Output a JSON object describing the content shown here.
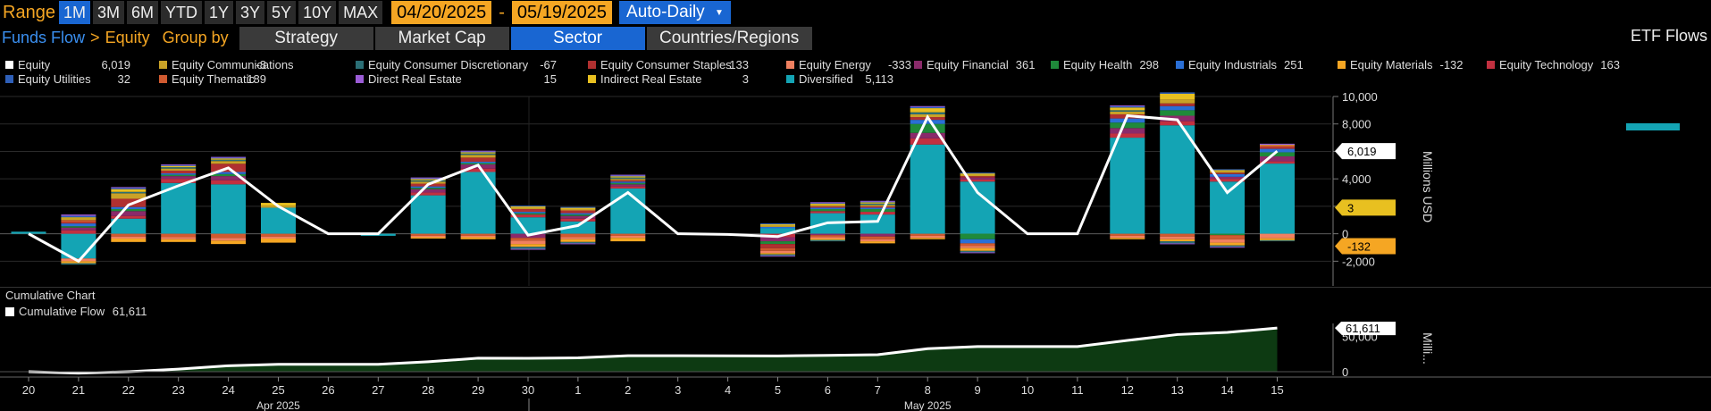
{
  "toolbar": {
    "range_label": "Range",
    "ranges": [
      "1M",
      "3M",
      "6M",
      "YTD",
      "1Y",
      "3Y",
      "5Y",
      "10Y",
      "MAX"
    ],
    "active_range": "1M",
    "start_date": "04/20/2025",
    "date_separator": "-",
    "end_date": "05/19/2025",
    "frequency": "Auto-Daily",
    "frequency_arrow": "▼"
  },
  "nav": {
    "crumb_root": "Funds Flow",
    "crumb_sep": ">",
    "crumb_leaf": "Equity",
    "group_by_label": "Group by",
    "group_tabs": [
      "Strategy",
      "Market Cap",
      "Sector",
      "Countries/Regions"
    ],
    "active_tab": "Sector",
    "panel_title": "ETF Flows"
  },
  "legend": [
    {
      "name": "Equity",
      "value": "6,019",
      "color": "#ffffff"
    },
    {
      "name": "Equity Communications",
      "value": "-8",
      "color": "#c9a227"
    },
    {
      "name": "Equity Consumer Discretionary",
      "value": "-67",
      "color": "#2b6f76"
    },
    {
      "name": "Equity Consumer Staples",
      "value": "133",
      "color": "#b03030"
    },
    {
      "name": "Equity Energy",
      "value": "-333",
      "color": "#f08060"
    },
    {
      "name": "Equity Financial",
      "value": "361",
      "color": "#8a2a6a"
    },
    {
      "name": "Equity Health",
      "value": "298",
      "color": "#1f8a3a"
    },
    {
      "name": "Equity Industrials",
      "value": "251",
      "color": "#2a6fd6"
    },
    {
      "name": "Equity Materials",
      "value": "-132",
      "color": "#f5a623"
    },
    {
      "name": "Equity Technology",
      "value": "163",
      "color": "#c23040"
    },
    {
      "name": "Equity Utilities",
      "value": "32",
      "color": "#2e5fb8"
    },
    {
      "name": "Equity Thematic",
      "value": "189",
      "color": "#d05a30"
    },
    {
      "name": "Direct Real Estate",
      "value": "15",
      "color": "#9b5cd6"
    },
    {
      "name": "Indirect Real Estate",
      "value": "3",
      "color": "#e8c020"
    },
    {
      "name": "Diversified",
      "value": "5,113",
      "color": "#14a4b4"
    }
  ],
  "chart_data": [
    {
      "type": "bar",
      "stacked": true,
      "ylabel": "Millions USD",
      "ylim": [
        -3800,
        10000
      ],
      "yticks": [
        10000,
        8000,
        6000,
        4000,
        2000,
        0,
        -2000
      ],
      "ytick_labels": [
        "10,000",
        "8,000",
        "6,000",
        "4,000",
        "2,000",
        "0",
        "-2,000"
      ],
      "categories": [
        "20",
        "21",
        "22",
        "23",
        "24",
        "25",
        "26",
        "27",
        "28",
        "29",
        "30",
        "1",
        "2",
        "3",
        "4",
        "5",
        "6",
        "7",
        "8",
        "9",
        "10",
        "11",
        "12",
        "13",
        "14",
        "15"
      ],
      "month_labels": [
        {
          "label": "Apr 2025",
          "at": "25"
        },
        {
          "label": "May 2025",
          "at": "8"
        }
      ],
      "series": [
        {
          "name": "Equity",
          "kind": "line",
          "color": "#ffffff",
          "values": [
            0,
            -2000,
            2100,
            3500,
            4800,
            2000,
            0,
            0,
            3600,
            5000,
            -100,
            600,
            3000,
            0,
            -50,
            -200,
            800,
            900,
            8500,
            3000,
            0,
            0,
            8600,
            8300,
            3000,
            6019
          ]
        },
        {
          "name": "Diversified",
          "color": "#14a4b4",
          "values": [
            150,
            -1800,
            1100,
            3700,
            3600,
            1900,
            0,
            -150,
            2800,
            4500,
            1200,
            900,
            3300,
            0,
            0,
            400,
            1500,
            1400,
            6500,
            3800,
            0,
            0,
            7000,
            7900,
            3800,
            5113
          ]
        },
        {
          "name": "Equity Technology",
          "color": "#c23040",
          "values": [
            0,
            250,
            200,
            300,
            300,
            0,
            0,
            0,
            200,
            250,
            200,
            200,
            150,
            0,
            0,
            -250,
            150,
            200,
            450,
            150,
            0,
            0,
            300,
            300,
            200,
            163
          ]
        },
        {
          "name": "Equity Financial",
          "color": "#8a2a6a",
          "values": [
            0,
            200,
            350,
            200,
            300,
            0,
            0,
            0,
            250,
            300,
            -300,
            200,
            150,
            0,
            0,
            -300,
            -100,
            -200,
            400,
            150,
            0,
            0,
            400,
            400,
            150,
            361
          ]
        },
        {
          "name": "Equity Health",
          "color": "#1f8a3a",
          "values": [
            0,
            100,
            150,
            100,
            150,
            0,
            0,
            0,
            100,
            100,
            100,
            100,
            100,
            0,
            0,
            -200,
            150,
            200,
            650,
            -400,
            0,
            0,
            400,
            400,
            -100,
            298
          ]
        },
        {
          "name": "Equity Industrials",
          "color": "#2a6fd6",
          "values": [
            0,
            200,
            150,
            100,
            150,
            0,
            0,
            0,
            100,
            100,
            100,
            100,
            100,
            0,
            0,
            100,
            100,
            100,
            300,
            -300,
            0,
            0,
            300,
            300,
            200,
            251
          ]
        },
        {
          "name": "Equity Consumer Staples",
          "color": "#b03030",
          "values": [
            0,
            100,
            600,
            200,
            600,
            0,
            0,
            0,
            200,
            300,
            200,
            200,
            100,
            0,
            0,
            -300,
            100,
            100,
            200,
            100,
            0,
            0,
            300,
            200,
            100,
            133
          ]
        },
        {
          "name": "Equity Thematic",
          "color": "#d05a30",
          "values": [
            0,
            150,
            -200,
            -250,
            -300,
            -200,
            0,
            0,
            -150,
            -150,
            -200,
            -250,
            -150,
            0,
            0,
            -200,
            -150,
            -200,
            -150,
            -200,
            0,
            0,
            -150,
            -200,
            -300,
            189
          ]
        },
        {
          "name": "Equity Energy",
          "color": "#f08060",
          "values": [
            0,
            -200,
            -150,
            -150,
            -200,
            -150,
            0,
            0,
            -100,
            -100,
            -250,
            -150,
            -150,
            0,
            0,
            -150,
            -100,
            -150,
            -150,
            -150,
            0,
            0,
            -150,
            -200,
            -250,
            -333
          ]
        },
        {
          "name": "Equity Materials",
          "color": "#f5a623",
          "values": [
            0,
            -150,
            -250,
            -200,
            -250,
            -300,
            0,
            0,
            -100,
            -150,
            -200,
            -200,
            -250,
            0,
            0,
            -100,
            -100,
            -150,
            -100,
            -200,
            0,
            0,
            -100,
            -150,
            -200,
            -132
          ]
        },
        {
          "name": "Equity Communications",
          "color": "#c9a227",
          "values": [
            0,
            100,
            400,
            150,
            200,
            150,
            0,
            0,
            150,
            200,
            100,
            100,
            100,
            0,
            0,
            100,
            100,
            100,
            200,
            100,
            0,
            0,
            200,
            300,
            100,
            -8
          ]
        },
        {
          "name": "Equity Consumer Discretionary",
          "color": "#2b6f76",
          "values": [
            0,
            -100,
            100,
            100,
            100,
            0,
            0,
            0,
            100,
            100,
            -150,
            -100,
            100,
            0,
            0,
            -100,
            -100,
            100,
            150,
            -100,
            0,
            0,
            100,
            -150,
            -100,
            -67
          ]
        },
        {
          "name": "Indirect Real Estate",
          "color": "#e8c020",
          "values": [
            0,
            100,
            200,
            100,
            100,
            200,
            0,
            0,
            100,
            100,
            100,
            100,
            100,
            0,
            0,
            100,
            100,
            100,
            300,
            100,
            0,
            0,
            200,
            400,
            100,
            3
          ]
        },
        {
          "name": "Equity Utilities",
          "color": "#2e5fb8",
          "values": [
            0,
            100,
            100,
            50,
            50,
            0,
            0,
            0,
            50,
            50,
            50,
            50,
            50,
            0,
            0,
            50,
            50,
            50,
            100,
            50,
            0,
            0,
            100,
            100,
            50,
            32
          ]
        },
        {
          "name": "Direct Real Estate",
          "color": "#9b5cd6",
          "values": [
            0,
            100,
            50,
            50,
            50,
            0,
            0,
            0,
            50,
            50,
            -50,
            -50,
            50,
            0,
            0,
            -50,
            50,
            50,
            50,
            -50,
            0,
            0,
            50,
            -50,
            -50,
            15
          ]
        }
      ],
      "last_value_tags": [
        {
          "label": "6,019",
          "value": 6019,
          "bg": "#ffffff",
          "fg": "#000000"
        },
        {
          "label": "3",
          "value": 3,
          "bg": "#e8c020",
          "fg": "#000000"
        },
        {
          "label": "-132",
          "value": -132,
          "bg": "#f5a623",
          "fg": "#000000"
        }
      ]
    },
    {
      "type": "area",
      "title": "Cumulative Chart",
      "series": [
        {
          "name": "Cumulative Flow",
          "legend_value": "61,611",
          "values": [
            0,
            -2000,
            100,
            3600,
            8400,
            10400,
            10400,
            10400,
            14000,
            19000,
            18900,
            19500,
            22500,
            22500,
            22450,
            22250,
            23050,
            23950,
            32450,
            35450,
            35450,
            35450,
            44050,
            52350,
            55350,
            61611
          ]
        }
      ],
      "ylabel": "Milli...",
      "ylim": [
        -5000,
        68000
      ],
      "ytick_labels": [
        "0",
        "50,000"
      ],
      "last_value_tag": "61,611"
    }
  ]
}
